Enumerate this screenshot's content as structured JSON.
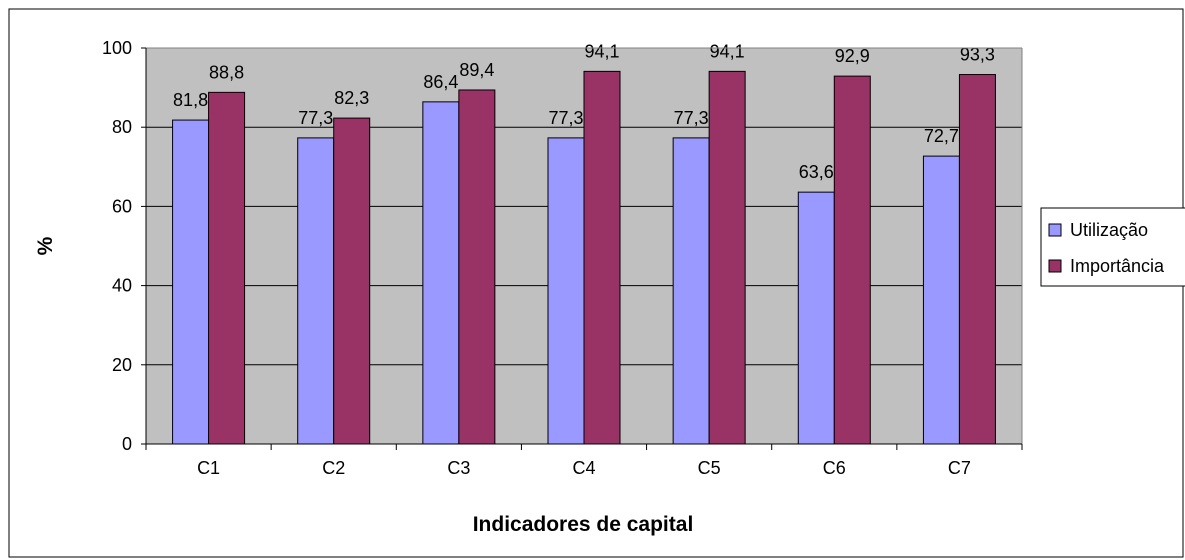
{
  "chart_data": {
    "type": "bar",
    "xlabel": "Indicadores de capital",
    "ylabel": "%",
    "ylim": [
      0,
      100
    ],
    "yticks": [
      "0",
      "20",
      "40",
      "60",
      "80",
      "100"
    ],
    "categories": [
      "C1",
      "C2",
      "C3",
      "C4",
      "C5",
      "C6",
      "C7"
    ],
    "series": [
      {
        "name": "Utilização",
        "color": "#9999ff",
        "values": [
          81.8,
          77.3,
          86.4,
          77.3,
          77.3,
          63.6,
          72.7
        ],
        "labels": [
          "81,8",
          "77,3",
          "86,4",
          "77,3",
          "77,3",
          "63,6",
          "72,7"
        ]
      },
      {
        "name": "Importância",
        "color": "#993366",
        "values": [
          88.8,
          82.3,
          89.4,
          94.1,
          94.1,
          92.9,
          93.3
        ],
        "labels": [
          "88,8",
          "82,3",
          "89,4",
          "94,1",
          "94,1",
          "92,9",
          "93,3"
        ]
      }
    ],
    "grid": true,
    "plot_background": "#c0c0c0",
    "legend_position": "right"
  }
}
